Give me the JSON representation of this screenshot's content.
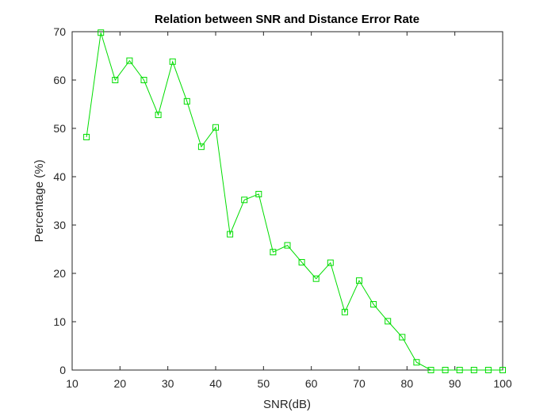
{
  "chart_data": {
    "type": "line",
    "title": "Relation between SNR and Distance Error Rate",
    "xlabel": "SNR(dB)",
    "ylabel": "Percentage (%)",
    "xlim": [
      10,
      100
    ],
    "ylim": [
      0,
      70
    ],
    "xticks": [
      "10",
      "20",
      "30",
      "40",
      "50",
      "60",
      "70",
      "80",
      "90",
      "100"
    ],
    "yticks": [
      "0",
      "10",
      "20",
      "30",
      "40",
      "50",
      "60",
      "70"
    ],
    "grid": false,
    "marker": "square",
    "color": "#00dd00",
    "series": [
      {
        "x": [
          13,
          16,
          19,
          22,
          25,
          28,
          31,
          34,
          37,
          40,
          43,
          46,
          49,
          52,
          55,
          58,
          61,
          64,
          67,
          70,
          73,
          76,
          79,
          82,
          85,
          88,
          91,
          94,
          97,
          100
        ],
        "values": [
          48.2,
          69.8,
          60.0,
          64.0,
          60.0,
          52.8,
          63.8,
          55.6,
          46.2,
          50.2,
          28.1,
          35.2,
          36.4,
          24.4,
          25.8,
          22.3,
          18.9,
          22.2,
          12.0,
          18.5,
          13.6,
          10.1,
          6.8,
          1.6,
          0,
          0,
          0,
          0,
          0,
          0
        ]
      }
    ]
  }
}
